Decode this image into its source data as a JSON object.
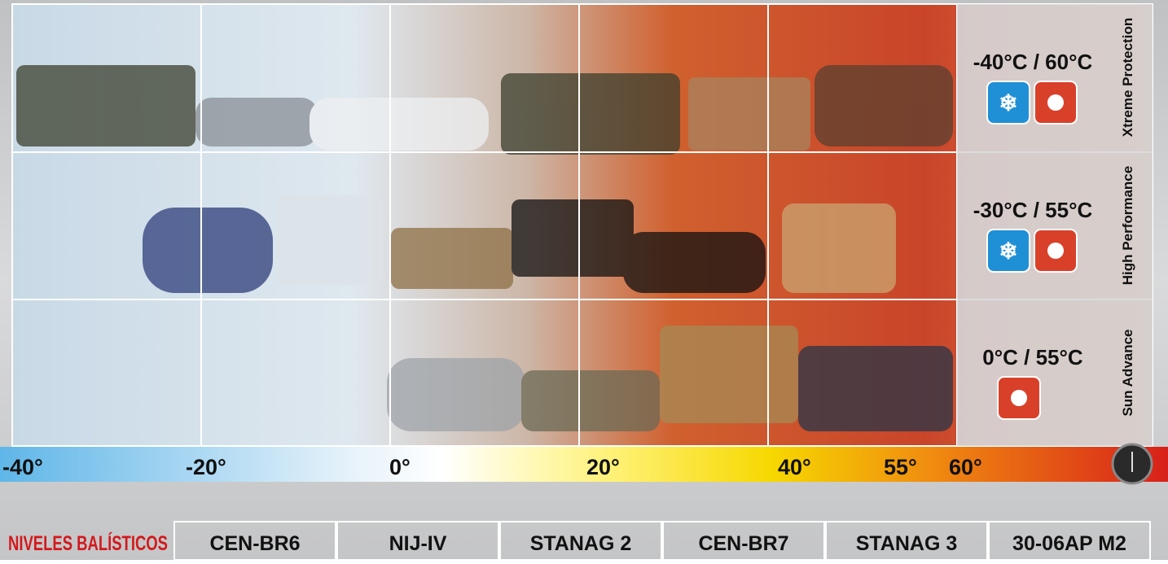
{
  "rows": [
    {
      "name": "Xtreme Protection",
      "range": "-40°C / 60°C"
    },
    {
      "name": "High Performance",
      "range": "-30°C / 55°C"
    },
    {
      "name": "Sun Advance",
      "range": "0°C / 55°C"
    }
  ],
  "scale": [
    "-40°",
    "-20°",
    "0°",
    "20°",
    "40°",
    "55°",
    "60°"
  ],
  "ballistic": {
    "title": "NIVELES BALÍSTICOS",
    "levels": [
      "CEN-BR6",
      "NIJ-IV",
      "STANAG 2",
      "CEN-BR7",
      "STANAG 3",
      "30-06AP M2"
    ]
  }
}
